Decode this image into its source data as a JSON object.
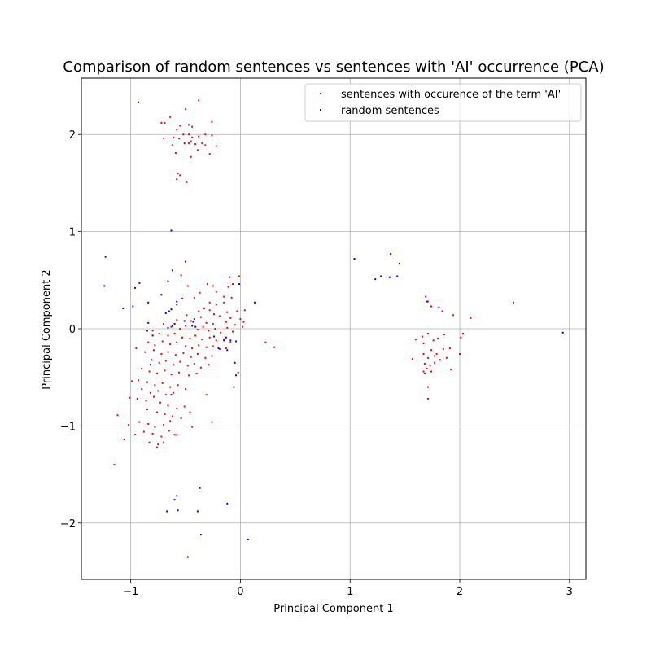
{
  "chart_data": {
    "type": "scatter",
    "title": "Comparison of random sentences vs sentences with 'AI' occurrence (PCA)",
    "xlabel": "Principal Component 1",
    "ylabel": "Principal Component 2",
    "xlim": [
      -1.45,
      3.15
    ],
    "ylim": [
      -2.58,
      2.58
    ],
    "xticks": [
      -1,
      0,
      1,
      2,
      3
    ],
    "yticks": [
      -2,
      -1,
      0,
      1,
      2
    ],
    "xtick_labels": [
      "−1",
      "0",
      "1",
      "2",
      "3"
    ],
    "ytick_labels": [
      "−2",
      "−1",
      "0",
      "1",
      "2"
    ],
    "grid": true,
    "legend_position": "top-right",
    "series": [
      {
        "name": "sentences with occurence of the term 'AI'",
        "color": "#ff0000",
        "points": [
          [
            -0.72,
            2.12
          ],
          [
            -0.69,
            2.12
          ],
          [
            -0.64,
            2.18
          ],
          [
            -0.5,
            2.26
          ],
          [
            -0.38,
            2.35
          ],
          [
            -0.58,
            2.05
          ],
          [
            -0.55,
            2.09
          ],
          [
            -0.47,
            2.1
          ],
          [
            -0.44,
            2.08
          ],
          [
            -0.7,
            1.96
          ],
          [
            -0.61,
            1.97
          ],
          [
            -0.56,
            1.96
          ],
          [
            -0.52,
            2.0
          ],
          [
            -0.47,
            2.0
          ],
          [
            -0.44,
            1.97
          ],
          [
            -0.38,
            1.98
          ],
          [
            -0.32,
            2.0
          ],
          [
            -0.26,
            1.99
          ],
          [
            -0.26,
            2.13
          ],
          [
            -0.62,
            1.89
          ],
          [
            -0.51,
            1.91
          ],
          [
            -0.47,
            1.91
          ],
          [
            -0.45,
            1.93
          ],
          [
            -0.41,
            1.9
          ],
          [
            -0.35,
            1.91
          ],
          [
            -0.32,
            1.89
          ],
          [
            -0.22,
            1.88
          ],
          [
            -0.59,
            1.81
          ],
          [
            -0.45,
            1.77
          ],
          [
            -0.39,
            1.84
          ],
          [
            -0.28,
            1.8
          ],
          [
            -0.57,
            1.6
          ],
          [
            -0.55,
            1.58
          ],
          [
            -0.58,
            1.54
          ],
          [
            -0.49,
            1.51
          ],
          [
            -0.1,
            0.53
          ],
          [
            -0.01,
            0.54
          ],
          [
            -0.54,
            0.55
          ],
          [
            -0.48,
            0.44
          ],
          [
            -0.3,
            0.46
          ],
          [
            -0.25,
            0.44
          ],
          [
            -0.11,
            0.43
          ],
          [
            -0.07,
            0.46
          ],
          [
            -0.37,
            0.37
          ],
          [
            -0.22,
            0.38
          ],
          [
            -0.15,
            0.33
          ],
          [
            -0.08,
            0.32
          ],
          [
            -0.42,
            0.32
          ],
          [
            -0.53,
            0.31
          ],
          [
            -0.28,
            0.27
          ],
          [
            -0.22,
            0.25
          ],
          [
            -0.15,
            0.27
          ],
          [
            -0.33,
            0.21
          ],
          [
            -0.38,
            0.18
          ],
          [
            -0.28,
            0.19
          ],
          [
            -0.24,
            0.15
          ],
          [
            -0.12,
            0.17
          ],
          [
            -0.03,
            0.18
          ],
          [
            0.04,
            0.19
          ],
          [
            -0.49,
            0.14
          ],
          [
            -0.36,
            0.12
          ],
          [
            -0.19,
            0.13
          ],
          [
            -0.09,
            0.11
          ],
          [
            0.0,
            0.1
          ],
          [
            0.03,
            0.07
          ],
          [
            -0.58,
            0.09
          ],
          [
            -0.45,
            0.08
          ],
          [
            -0.31,
            0.06
          ],
          [
            -0.25,
            0.05
          ],
          [
            -0.13,
            0.07
          ],
          [
            -0.05,
            0.04
          ],
          [
            0.02,
            0.02
          ],
          [
            -0.7,
            0.05
          ],
          [
            -0.63,
            0.02
          ],
          [
            -0.55,
            0.0
          ],
          [
            -0.5,
            0.03
          ],
          [
            -0.39,
            -0.01
          ],
          [
            -0.34,
            0.02
          ],
          [
            -0.29,
            -0.02
          ],
          [
            -0.23,
            0.0
          ],
          [
            -0.18,
            -0.04
          ],
          [
            -0.12,
            0.01
          ],
          [
            -0.07,
            -0.03
          ],
          [
            -0.8,
            -0.02
          ],
          [
            -0.74,
            -0.05
          ],
          [
            -0.66,
            -0.07
          ],
          [
            -0.6,
            -0.05
          ],
          [
            -0.53,
            -0.09
          ],
          [
            -0.46,
            -0.1
          ],
          [
            -0.41,
            -0.07
          ],
          [
            -0.35,
            -0.11
          ],
          [
            -0.28,
            -0.09
          ],
          [
            -0.22,
            -0.12
          ],
          [
            -0.15,
            -0.11
          ],
          [
            -0.09,
            -0.14
          ],
          [
            -0.84,
            -0.14
          ],
          [
            -0.78,
            -0.17
          ],
          [
            -0.71,
            -0.13
          ],
          [
            -0.64,
            -0.16
          ],
          [
            -0.58,
            -0.14
          ],
          [
            -0.5,
            -0.18
          ],
          [
            -0.44,
            -0.2
          ],
          [
            -0.38,
            -0.17
          ],
          [
            -0.31,
            -0.19
          ],
          [
            -0.25,
            -0.18
          ],
          [
            -0.19,
            -0.21
          ],
          [
            -0.13,
            -0.2
          ],
          [
            -0.95,
            -0.2
          ],
          [
            -0.87,
            -0.24
          ],
          [
            -0.79,
            -0.22
          ],
          [
            -0.72,
            -0.26
          ],
          [
            -0.66,
            -0.24
          ],
          [
            -0.59,
            -0.27
          ],
          [
            -0.52,
            -0.25
          ],
          [
            -0.45,
            -0.29
          ],
          [
            -0.39,
            -0.26
          ],
          [
            -0.32,
            -0.3
          ],
          [
            -0.26,
            -0.28
          ],
          [
            -0.81,
            -0.32
          ],
          [
            -0.74,
            -0.35
          ],
          [
            -0.68,
            -0.33
          ],
          [
            -0.61,
            -0.37
          ],
          [
            -0.55,
            -0.34
          ],
          [
            -0.48,
            -0.38
          ],
          [
            -0.42,
            -0.36
          ],
          [
            -0.36,
            -0.4
          ],
          [
            -0.29,
            -0.37
          ],
          [
            -0.9,
            -0.41
          ],
          [
            -0.83,
            -0.44
          ],
          [
            -0.76,
            -0.46
          ],
          [
            -0.69,
            -0.43
          ],
          [
            -0.63,
            -0.47
          ],
          [
            -0.56,
            -0.45
          ],
          [
            -0.47,
            -0.48
          ],
          [
            -0.4,
            -0.46
          ],
          [
            -0.02,
            -0.45
          ],
          [
            -0.99,
            -0.54
          ],
          [
            -0.93,
            -0.53
          ],
          [
            -0.85,
            -0.55
          ],
          [
            -0.78,
            -0.58
          ],
          [
            -0.71,
            -0.56
          ],
          [
            -0.64,
            -0.6
          ],
          [
            -0.57,
            -0.58
          ],
          [
            -0.5,
            -0.62
          ],
          [
            -0.9,
            -0.62
          ],
          [
            -0.82,
            -0.66
          ],
          [
            -0.75,
            -0.64
          ],
          [
            -0.68,
            -0.68
          ],
          [
            -0.61,
            -0.66
          ],
          [
            -0.31,
            -0.68
          ],
          [
            -1.01,
            -0.71
          ],
          [
            -0.94,
            -0.72
          ],
          [
            -0.86,
            -0.74
          ],
          [
            -0.79,
            -0.7
          ],
          [
            -0.73,
            -0.76
          ],
          [
            -0.66,
            -0.79
          ],
          [
            -0.58,
            -0.82
          ],
          [
            -0.51,
            -0.8
          ],
          [
            -0.85,
            -0.83
          ],
          [
            -0.76,
            -0.86
          ],
          [
            -0.69,
            -0.88
          ],
          [
            -0.62,
            -0.9
          ],
          [
            -0.54,
            -0.92
          ],
          [
            -0.46,
            -0.86
          ],
          [
            -1.12,
            -0.89
          ],
          [
            -0.92,
            -0.96
          ],
          [
            -0.84,
            -0.98
          ],
          [
            -0.78,
            -1.01
          ],
          [
            -0.7,
            -0.99
          ],
          [
            -0.64,
            -0.95
          ],
          [
            -0.44,
            -1.01
          ],
          [
            -0.26,
            -0.96
          ],
          [
            -1.02,
            -0.99
          ],
          [
            -0.96,
            -1.09
          ],
          [
            -0.88,
            -1.06
          ],
          [
            -0.8,
            -1.08
          ],
          [
            -0.72,
            -1.11
          ],
          [
            -0.65,
            -1.05
          ],
          [
            -0.6,
            -1.09
          ],
          [
            -0.58,
            -1.09
          ],
          [
            -1.06,
            -1.14
          ],
          [
            -0.83,
            -1.17
          ],
          [
            -0.75,
            -1.19
          ],
          [
            -0.7,
            -1.17
          ],
          [
            -0.76,
            -1.22
          ],
          [
            -1.15,
            -1.4
          ],
          [
            0.23,
            -0.14
          ],
          [
            0.31,
            -0.19
          ],
          [
            1.69,
            0.33
          ],
          [
            1.71,
            0.28
          ],
          [
            1.74,
            0.23
          ],
          [
            1.84,
            0.18
          ],
          [
            1.94,
            0.14
          ],
          [
            2.1,
            0.11
          ],
          [
            2.49,
            0.27
          ],
          [
            1.66,
            -0.08
          ],
          [
            1.71,
            -0.05
          ],
          [
            1.76,
            -0.12
          ],
          [
            1.8,
            -0.1
          ],
          [
            1.86,
            -0.06
          ],
          [
            2.03,
            -0.05
          ],
          [
            1.6,
            -0.11
          ],
          [
            1.67,
            -0.15
          ],
          [
            1.74,
            -0.22
          ],
          [
            1.79,
            -0.26
          ],
          [
            1.85,
            -0.21
          ],
          [
            1.91,
            -0.2
          ],
          [
            2.01,
            -0.09
          ],
          [
            1.67,
            -0.26
          ],
          [
            1.71,
            -0.3
          ],
          [
            1.77,
            -0.28
          ],
          [
            1.82,
            -0.32
          ],
          [
            1.88,
            -0.3
          ],
          [
            1.57,
            -0.31
          ],
          [
            2.0,
            -0.26
          ],
          [
            1.68,
            -0.36
          ],
          [
            1.73,
            -0.38
          ],
          [
            1.77,
            -0.35
          ],
          [
            1.7,
            -0.41
          ],
          [
            1.74,
            -0.44
          ],
          [
            1.68,
            -0.46
          ],
          [
            1.67,
            -0.44
          ],
          [
            1.92,
            -0.42
          ],
          [
            1.71,
            -0.6
          ],
          [
            1.71,
            -0.72
          ]
        ]
      },
      {
        "name": "random sentences",
        "color": "#0000ff",
        "points": [
          [
            -0.93,
            2.33
          ],
          [
            -0.63,
            1.01
          ],
          [
            -1.23,
            0.74
          ],
          [
            -0.5,
            0.69
          ],
          [
            -0.62,
            0.6
          ],
          [
            -0.92,
            0.47
          ],
          [
            -1.24,
            0.44
          ],
          [
            -0.96,
            0.42
          ],
          [
            -0.66,
            0.49
          ],
          [
            -0.01,
            0.46
          ],
          [
            -0.72,
            0.35
          ],
          [
            -0.84,
            0.27
          ],
          [
            -0.58,
            0.28
          ],
          [
            -0.58,
            0.25
          ],
          [
            0.13,
            0.27
          ],
          [
            -0.68,
            0.16
          ],
          [
            -1.07,
            0.21
          ],
          [
            -0.98,
            0.23
          ],
          [
            -0.65,
            0.18
          ],
          [
            -0.63,
            0.2
          ],
          [
            -0.42,
            0.1
          ],
          [
            -0.43,
            0.07
          ],
          [
            -0.51,
            0.08
          ],
          [
            -0.44,
            0.03
          ],
          [
            -0.6,
            0.05
          ],
          [
            -0.62,
            0.03
          ],
          [
            -0.84,
            0.06
          ],
          [
            -0.66,
            0.01
          ],
          [
            -0.41,
            0.02
          ],
          [
            -0.24,
            -0.08
          ],
          [
            -0.13,
            -0.09
          ],
          [
            -0.15,
            -0.12
          ],
          [
            -0.09,
            -0.12
          ],
          [
            -0.04,
            -0.13
          ],
          [
            -0.2,
            -0.2
          ],
          [
            -0.12,
            -0.22
          ],
          [
            -0.85,
            -0.02
          ],
          [
            -0.8,
            -0.07
          ],
          [
            -0.82,
            -0.37
          ],
          [
            -0.05,
            -0.35
          ],
          [
            -0.63,
            -0.68
          ],
          [
            -0.06,
            -0.6
          ],
          [
            -0.04,
            -0.48
          ],
          [
            -0.37,
            -1.64
          ],
          [
            -0.58,
            -1.72
          ],
          [
            -0.6,
            -1.76
          ],
          [
            -0.12,
            -1.8
          ],
          [
            -0.57,
            -1.87
          ],
          [
            -0.67,
            -1.88
          ],
          [
            -0.39,
            -1.88
          ],
          [
            -0.36,
            -2.12
          ],
          [
            0.07,
            -2.17
          ],
          [
            -0.48,
            -2.35
          ],
          [
            1.04,
            0.72
          ],
          [
            1.37,
            0.77
          ],
          [
            1.45,
            0.67
          ],
          [
            1.23,
            0.51
          ],
          [
            1.28,
            0.54
          ],
          [
            1.36,
            0.53
          ],
          [
            1.43,
            0.54
          ],
          [
            1.7,
            0.28
          ],
          [
            1.81,
            0.22
          ],
          [
            2.94,
            -0.04
          ]
        ]
      }
    ]
  }
}
